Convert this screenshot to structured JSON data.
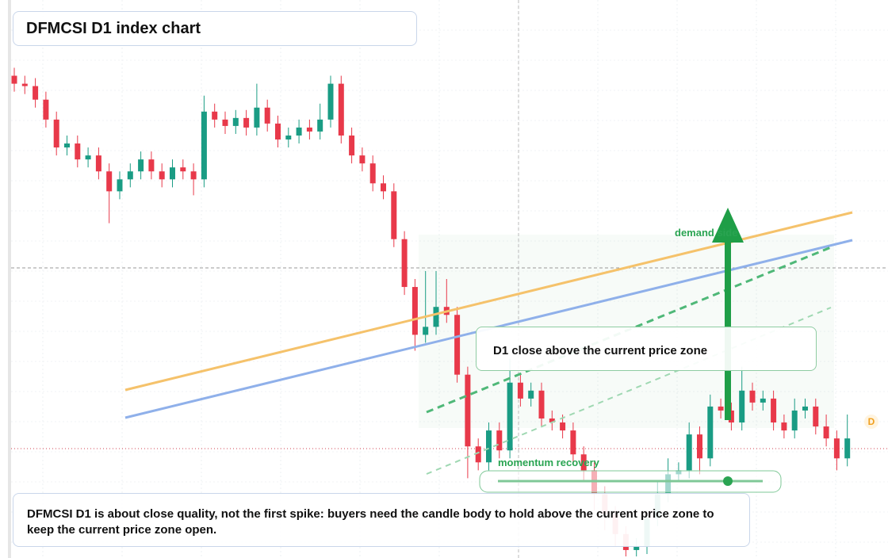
{
  "chart_data": {
    "type": "candlestick",
    "title": "DFMCSI D1 index chart",
    "note": "DFMCSI D1 is about close quality, not the first spike: buyers need the candle body to hold above the current price zone to keep the current price zone open.",
    "annotations": [
      "D1 close above the current price zone",
      "demand side",
      "momentum recovery",
      "D"
    ],
    "up_color": "#1a9c84",
    "down_color": "#e8394a",
    "ylim": [
      100,
      170
    ],
    "open": [
      160.5,
      159.5,
      159.2,
      157.5,
      155,
      151.5,
      152,
      150,
      150.5,
      148.5,
      146,
      147.5,
      148.5,
      150,
      148.5,
      147.5,
      149,
      148.5,
      147.5,
      156,
      155,
      154.2,
      155.2,
      154,
      156.5,
      154.5,
      152.5,
      153,
      154,
      153.5,
      155,
      159.5,
      153,
      150.5,
      149.5,
      147,
      146,
      140,
      134,
      128,
      129,
      131.5,
      130.5,
      123,
      114,
      112,
      116,
      113.5,
      122,
      120,
      121,
      117.5,
      117,
      116,
      113,
      111,
      108,
      105.5,
      103,
      101,
      101.5,
      105,
      108,
      110.5,
      111,
      115.5,
      112.5,
      119,
      118.5,
      117,
      121,
      119.5,
      120,
      117,
      116,
      118.5,
      119,
      116.5,
      115,
      112.5
    ],
    "high": [
      161.5,
      160.5,
      160.2,
      158.5,
      156,
      153,
      153,
      151.5,
      151.5,
      149.5,
      148.5,
      149.5,
      151,
      151,
      149.5,
      150,
      150,
      149.5,
      158,
      157,
      156,
      156.2,
      156.2,
      159.5,
      157.5,
      155.5,
      154,
      155,
      155,
      157,
      160.5,
      160.5,
      154,
      151.5,
      150.5,
      148,
      147,
      141,
      135,
      136,
      136,
      135,
      131.5,
      124,
      115,
      117,
      117,
      125,
      123,
      122,
      122,
      118.5,
      118,
      117,
      114,
      112,
      109,
      106.5,
      104,
      102.5,
      106,
      109.5,
      112.5,
      112,
      117,
      116.5,
      120.5,
      120,
      119.5,
      124,
      122,
      121,
      121,
      118,
      120,
      120,
      120,
      118,
      116,
      118
    ],
    "low": [
      158.5,
      158.2,
      156.5,
      154,
      150.5,
      150.5,
      149,
      149,
      147.5,
      142,
      145,
      146.5,
      147.5,
      147.5,
      146.5,
      146.5,
      147.5,
      145.5,
      146.5,
      154,
      153.2,
      153.2,
      153,
      153,
      153.5,
      151.5,
      151.5,
      152,
      152.5,
      152.5,
      154,
      152,
      149.5,
      148.5,
      146,
      145,
      139,
      133,
      126,
      127,
      128,
      129.5,
      122,
      110,
      111,
      111,
      112.5,
      112.5,
      119,
      119,
      116.5,
      116,
      115,
      112,
      109.5,
      106,
      103.5,
      101.5,
      100.2,
      100.2,
      100.5,
      104,
      107,
      109.5,
      110,
      110.5,
      111.5,
      117.5,
      116,
      116,
      118.5,
      118.5,
      116,
      115,
      115,
      117.5,
      115.5,
      114,
      111,
      111.5
    ],
    "close": [
      159.5,
      159.2,
      157.5,
      155,
      151.5,
      152,
      150,
      150.5,
      148.5,
      146,
      147.5,
      148.5,
      150,
      148.5,
      147.5,
      149,
      148.5,
      147.5,
      156,
      155,
      154.2,
      155.2,
      154,
      156.5,
      154.5,
      152.5,
      153,
      154,
      153.5,
      155,
      159.5,
      153,
      150.5,
      149.5,
      147,
      146,
      140,
      134,
      128,
      129,
      131.5,
      130.5,
      123,
      114,
      112,
      116,
      113.5,
      122,
      120,
      121,
      117.5,
      117,
      116,
      113,
      111,
      108,
      105.5,
      103,
      101,
      101.5,
      105,
      108,
      110.5,
      111,
      115.5,
      112.5,
      119,
      118.5,
      117,
      121,
      119.5,
      120,
      117,
      116,
      118.5,
      119,
      116.5,
      115,
      112.5,
      115
    ]
  }
}
